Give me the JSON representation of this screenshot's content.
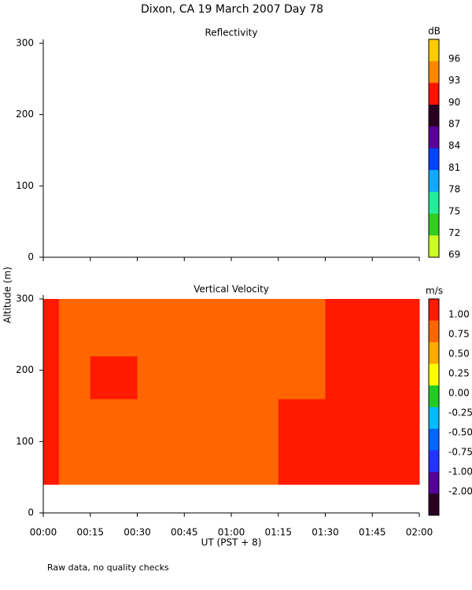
{
  "title": "Dixon, CA 19 March 2007  Day  78",
  "y_label": "Altitude (m)",
  "x_label": "UT  (PST + 8)",
  "footnote": "Raw data, no quality checks",
  "chart_data": [
    {
      "type": "heatmap",
      "title": "Reflectivity",
      "ylim": [
        0,
        300
      ],
      "yticks": [
        0,
        100,
        200,
        300
      ],
      "colorbar": {
        "label": "dB",
        "ticks": [
          96,
          93,
          90,
          87,
          84,
          81,
          78,
          75,
          72,
          69
        ],
        "colors": [
          "#ffcc00",
          "#ff8800",
          "#ff1100",
          "#2a0022",
          "#5a0099",
          "#0044ff",
          "#11aaff",
          "#22ee99",
          "#33cc22",
          "#ccff22"
        ]
      }
    },
    {
      "type": "heatmap",
      "title": "Vertical Velocity",
      "xlim": [
        0,
        120
      ],
      "xticks": [
        {
          "value": 0,
          "label": "00:00"
        },
        {
          "value": 15,
          "label": "00:15"
        },
        {
          "value": 30,
          "label": "00:30"
        },
        {
          "value": 45,
          "label": "00:45"
        },
        {
          "value": 60,
          "label": "01:00"
        },
        {
          "value": 75,
          "label": "01:15"
        },
        {
          "value": 90,
          "label": "01:30"
        },
        {
          "value": 105,
          "label": "01:45"
        },
        {
          "value": 120,
          "label": "02:00"
        }
      ],
      "ylim": [
        0,
        300
      ],
      "yticks": [
        0,
        100,
        200,
        300
      ],
      "x_edges": [
        0,
        5,
        15,
        30,
        45,
        60,
        75,
        90,
        105,
        120
      ],
      "y_edges": [
        40,
        100,
        160,
        220,
        300
      ],
      "values": [
        [
          1.1,
          0.7,
          0.6,
          0.65,
          0.7,
          0.7,
          0.75,
          0.85,
          0.9
        ],
        [
          1.1,
          0.65,
          0.6,
          0.6,
          0.65,
          0.7,
          0.75,
          0.9,
          0.95
        ],
        [
          1.1,
          0.7,
          0.8,
          0.65,
          0.6,
          0.7,
          0.7,
          0.8,
          0.9
        ],
        [
          0.9,
          0.6,
          0.65,
          0.6,
          0.6,
          0.65,
          0.7,
          0.75,
          0.9
        ]
      ],
      "colorbar": {
        "label": "m/s",
        "ticks": [
          {
            "value": 1,
            "label": "1.00"
          },
          {
            "value": 0.75,
            "label": "0.75"
          },
          {
            "value": 0.5,
            "label": "0.50"
          },
          {
            "value": 0.25,
            "label": "0.25"
          },
          {
            "value": 0,
            "label": "0.00"
          },
          {
            "value": -0.25,
            "label": "-0.25"
          },
          {
            "value": -0.5,
            "label": "-0.50"
          },
          {
            "value": -0.75,
            "label": "-0.75"
          },
          {
            "value": -1,
            "label": "-1.00"
          },
          {
            "value": -2,
            "label": "-2.00"
          }
        ],
        "colors": [
          "#ff1a00",
          "#ff6600",
          "#ffaa00",
          "#ffff00",
          "#22cc22",
          "#00bbff",
          "#0066ff",
          "#2233ff",
          "#550099",
          "#2a0022"
        ]
      }
    }
  ]
}
